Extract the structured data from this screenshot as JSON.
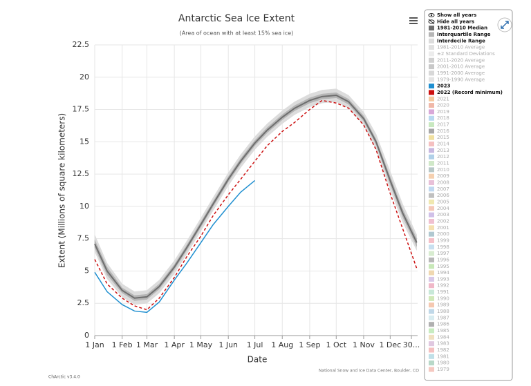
{
  "chart_data": {
    "type": "line",
    "title": "Antarctic Sea Ice Extent",
    "subtitle": "(Area of ocean with at least 15% sea ice)",
    "x_label": "Date",
    "y_label": "Extent (Millions of square kilometers)",
    "credit": "National Snow and Ice Data Center, Boulder, CO",
    "version": "ChArctic v3.4.0",
    "xlim": [
      1,
      366
    ],
    "xticks": [
      {
        "value": 1,
        "label": "1 Jan"
      },
      {
        "value": 32,
        "label": "1 Feb"
      },
      {
        "value": 60,
        "label": "1 Mar"
      },
      {
        "value": 91,
        "label": "1 Apr"
      },
      {
        "value": 121,
        "label": "1 May"
      },
      {
        "value": 152,
        "label": "1 Jun"
      },
      {
        "value": 182,
        "label": "1 Jul"
      },
      {
        "value": 213,
        "label": "1 Aug"
      },
      {
        "value": 244,
        "label": "1 Sep"
      },
      {
        "value": 274,
        "label": "1 Oct"
      },
      {
        "value": 305,
        "label": "1 Nov"
      },
      {
        "value": 335,
        "label": "1 Dec"
      },
      {
        "value": 359,
        "label": "30..."
      }
    ],
    "ylim": [
      0,
      22.5
    ],
    "yticks": [
      0,
      2.5,
      5,
      7.5,
      10,
      12.5,
      15,
      17.5,
      20,
      22.5
    ],
    "grid": true,
    "x": [
      1,
      15,
      32,
      46,
      60,
      74,
      91,
      105,
      121,
      135,
      152,
      166,
      182,
      196,
      213,
      227,
      244,
      258,
      274,
      288,
      305,
      319,
      335,
      349,
      365
    ],
    "bands": [
      {
        "name": "Interdecile Range",
        "color": "#dcdcdc",
        "low": [
          6.5,
          4.4,
          3.0,
          2.4,
          2.5,
          3.3,
          4.8,
          6.3,
          8.1,
          9.7,
          11.6,
          13.0,
          14.4,
          15.4,
          16.4,
          17.1,
          17.7,
          18.0,
          18.1,
          17.6,
          16.3,
          14.4,
          11.3,
          8.8,
          6.6
        ],
        "high": [
          7.8,
          5.6,
          4.0,
          3.4,
          3.5,
          4.3,
          5.8,
          7.3,
          9.1,
          10.7,
          12.6,
          14.0,
          15.4,
          16.4,
          17.4,
          18.1,
          18.7,
          19.0,
          19.1,
          18.6,
          17.3,
          15.6,
          12.7,
          10.2,
          7.8
        ]
      },
      {
        "name": "Interquartile Range",
        "color": "#b5b5b5",
        "low": [
          6.8,
          4.7,
          3.3,
          2.7,
          2.8,
          3.6,
          5.1,
          6.6,
          8.4,
          10.0,
          11.9,
          13.3,
          14.7,
          15.7,
          16.7,
          17.4,
          18.0,
          18.3,
          18.4,
          17.9,
          16.6,
          14.8,
          11.7,
          9.2,
          6.9
        ],
        "high": [
          7.4,
          5.3,
          3.7,
          3.1,
          3.2,
          4.0,
          5.5,
          7.0,
          8.8,
          10.4,
          12.3,
          13.7,
          15.1,
          16.1,
          17.1,
          17.8,
          18.4,
          18.7,
          18.8,
          18.3,
          17.0,
          15.2,
          12.3,
          9.8,
          7.5
        ]
      }
    ],
    "series": [
      {
        "name": "1981-2010 Median",
        "color": "#6e6e6e",
        "dash": false,
        "width": 2,
        "values": [
          7.1,
          5.0,
          3.5,
          2.9,
          3.0,
          3.8,
          5.3,
          6.8,
          8.6,
          10.2,
          12.1,
          13.5,
          14.9,
          15.9,
          16.9,
          17.6,
          18.2,
          18.5,
          18.6,
          18.1,
          16.8,
          15.0,
          12.0,
          9.5,
          7.2
        ]
      },
      {
        "name": "2022 (Record minimum)",
        "color": "#cc1010",
        "dash": true,
        "width": 1.5,
        "values": [
          5.9,
          4.0,
          2.9,
          2.3,
          2.0,
          2.9,
          4.5,
          6.1,
          7.7,
          9.3,
          10.9,
          12.1,
          13.5,
          14.7,
          15.8,
          16.5,
          17.5,
          18.2,
          18.0,
          17.6,
          16.3,
          14.4,
          11.0,
          8.3,
          5.2
        ]
      },
      {
        "name": "2023",
        "color": "#1f8fd0",
        "dash": false,
        "width": 1.5,
        "values": [
          4.9,
          3.4,
          2.4,
          1.9,
          1.8,
          2.6,
          4.3,
          5.6,
          7.2,
          8.6,
          10.0,
          11.1,
          12.0,
          null,
          null,
          null,
          null,
          null,
          null,
          null,
          null,
          null,
          null,
          null,
          null
        ]
      }
    ],
    "legend": [
      {
        "name": "Show all years",
        "icon": "eye",
        "style": "bold"
      },
      {
        "name": "Hide all years",
        "icon": "eye-off",
        "style": "bold"
      },
      {
        "name": "1981-2010 Median",
        "color": "#6e6e6e",
        "style": "bold"
      },
      {
        "name": "Interquartile Range",
        "color": "#b5b5b5",
        "style": "bold"
      },
      {
        "name": "Interdecile Range",
        "color": "#dcdcdc",
        "style": "bold"
      },
      {
        "name": "1981-2010 Average",
        "color": "#e0e0e0",
        "style": "faded"
      },
      {
        "name": "±2 Standard Deviations",
        "color": "#ececec",
        "style": "faded"
      },
      {
        "name": "2011-2020 Average",
        "color": "#d0d0d0",
        "style": "faded"
      },
      {
        "name": "2001-2010 Average",
        "color": "#c8c8c8",
        "style": "faded"
      },
      {
        "name": "1991-2000 Average",
        "color": "#d8d8d8",
        "style": "faded"
      },
      {
        "name": "1979-1990 Average",
        "color": "#e4e4e4",
        "style": "faded"
      },
      {
        "name": "2023",
        "color": "#1f8fd0",
        "style": "bold"
      },
      {
        "name": "2022 (Record minimum)",
        "color": "#cc1010",
        "style": "bold"
      },
      {
        "name": "2021",
        "color": "#f5c9a0",
        "style": "faded"
      },
      {
        "name": "2020",
        "color": "#f0b8a8",
        "style": "faded"
      },
      {
        "name": "2019",
        "color": "#d8a8d8",
        "style": "faded"
      },
      {
        "name": "2018",
        "color": "#b8d8f0",
        "style": "faded"
      },
      {
        "name": "2017",
        "color": "#c8e8c0",
        "style": "faded"
      },
      {
        "name": "2016",
        "color": "#a8a8a8",
        "style": "faded"
      },
      {
        "name": "2015",
        "color": "#f0e0a0",
        "style": "faded"
      },
      {
        "name": "2014",
        "color": "#f5c0c0",
        "style": "faded"
      },
      {
        "name": "2013",
        "color": "#c8b8e0",
        "style": "faded"
      },
      {
        "name": "2012",
        "color": "#b0d0e8",
        "style": "faded"
      },
      {
        "name": "2011",
        "color": "#d0e8c8",
        "style": "faded"
      },
      {
        "name": "2010",
        "color": "#b8c8c8",
        "style": "faded"
      },
      {
        "name": "2009",
        "color": "#f5d0b0",
        "style": "faded"
      },
      {
        "name": "2008",
        "color": "#e8c0d8",
        "style": "faded"
      },
      {
        "name": "2007",
        "color": "#c0d8f0",
        "style": "faded"
      },
      {
        "name": "2006",
        "color": "#c0c0c0",
        "style": "faded"
      },
      {
        "name": "2005",
        "color": "#f0e8b0",
        "style": "faded"
      },
      {
        "name": "2004",
        "color": "#f5c8b8",
        "style": "faded"
      },
      {
        "name": "2003",
        "color": "#d0c0e8",
        "style": "faded"
      },
      {
        "name": "2002",
        "color": "#f0c0d0",
        "style": "faded"
      },
      {
        "name": "2001",
        "color": "#f5e0b0",
        "style": "faded"
      },
      {
        "name": "2000",
        "color": "#b0c8d0",
        "style": "faded"
      },
      {
        "name": "1999",
        "color": "#f5c0c8",
        "style": "faded"
      },
      {
        "name": "1998",
        "color": "#c8e0f0",
        "style": "faded"
      },
      {
        "name": "1997",
        "color": "#d8ecd0",
        "style": "faded"
      },
      {
        "name": "1996",
        "color": "#b8b8b8",
        "style": "faded"
      },
      {
        "name": "1995",
        "color": "#c8e8b8",
        "style": "faded"
      },
      {
        "name": "1994",
        "color": "#f0d8b0",
        "style": "faded"
      },
      {
        "name": "1993",
        "color": "#d8c8e8",
        "style": "faded"
      },
      {
        "name": "1992",
        "color": "#f0b8c8",
        "style": "faded"
      },
      {
        "name": "1991",
        "color": "#c8e8d8",
        "style": "faded"
      },
      {
        "name": "1990",
        "color": "#d0e8b8",
        "style": "faded"
      },
      {
        "name": "1989",
        "color": "#f5c8b0",
        "style": "faded"
      },
      {
        "name": "1988",
        "color": "#c0d8e8",
        "style": "faded"
      },
      {
        "name": "1987",
        "color": "#d8ecf0",
        "style": "faded"
      },
      {
        "name": "1986",
        "color": "#b0b0b0",
        "style": "faded"
      },
      {
        "name": "1985",
        "color": "#c8ecc0",
        "style": "faded"
      },
      {
        "name": "1984",
        "color": "#f0e0c0",
        "style": "faded"
      },
      {
        "name": "1983",
        "color": "#e0c8e0",
        "style": "faded"
      },
      {
        "name": "1982",
        "color": "#f5c0c0",
        "style": "faded"
      },
      {
        "name": "1981",
        "color": "#c0e0e8",
        "style": "faded"
      },
      {
        "name": "1980",
        "color": "#b8d8c8",
        "style": "faded"
      },
      {
        "name": "1979",
        "color": "#f5c8c0",
        "style": "faded"
      }
    ]
  }
}
